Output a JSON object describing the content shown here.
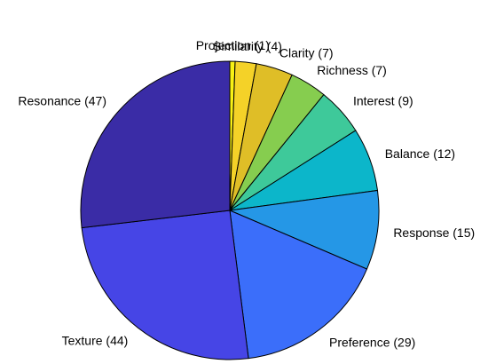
{
  "chart_data": {
    "type": "pie",
    "slices": [
      {
        "label": "Projection (1)",
        "value": 1,
        "color": "#f8f114"
      },
      {
        "label": "Similarity (4)",
        "value": 4,
        "color": "#f4d228"
      },
      {
        "label": "Clarity (7)",
        "value": 7,
        "color": "#dfbe27"
      },
      {
        "label": "Richness (7)",
        "value": 7,
        "color": "#86cd4f"
      },
      {
        "label": "Interest (9)",
        "value": 9,
        "color": "#3ec99a"
      },
      {
        "label": "Balance (12)",
        "value": 12,
        "color": "#0cb6ca"
      },
      {
        "label": "Response (15)",
        "value": 15,
        "color": "#2597e6"
      },
      {
        "label": "Preference (29)",
        "value": 29,
        "color": "#3b6efa"
      },
      {
        "label": "Texture (44)",
        "value": 44,
        "color": "#4645e6"
      },
      {
        "label": "Resonance (47)",
        "value": 47,
        "color": "#3a2ca6"
      }
    ],
    "start": "top",
    "direction": "clockwise"
  }
}
